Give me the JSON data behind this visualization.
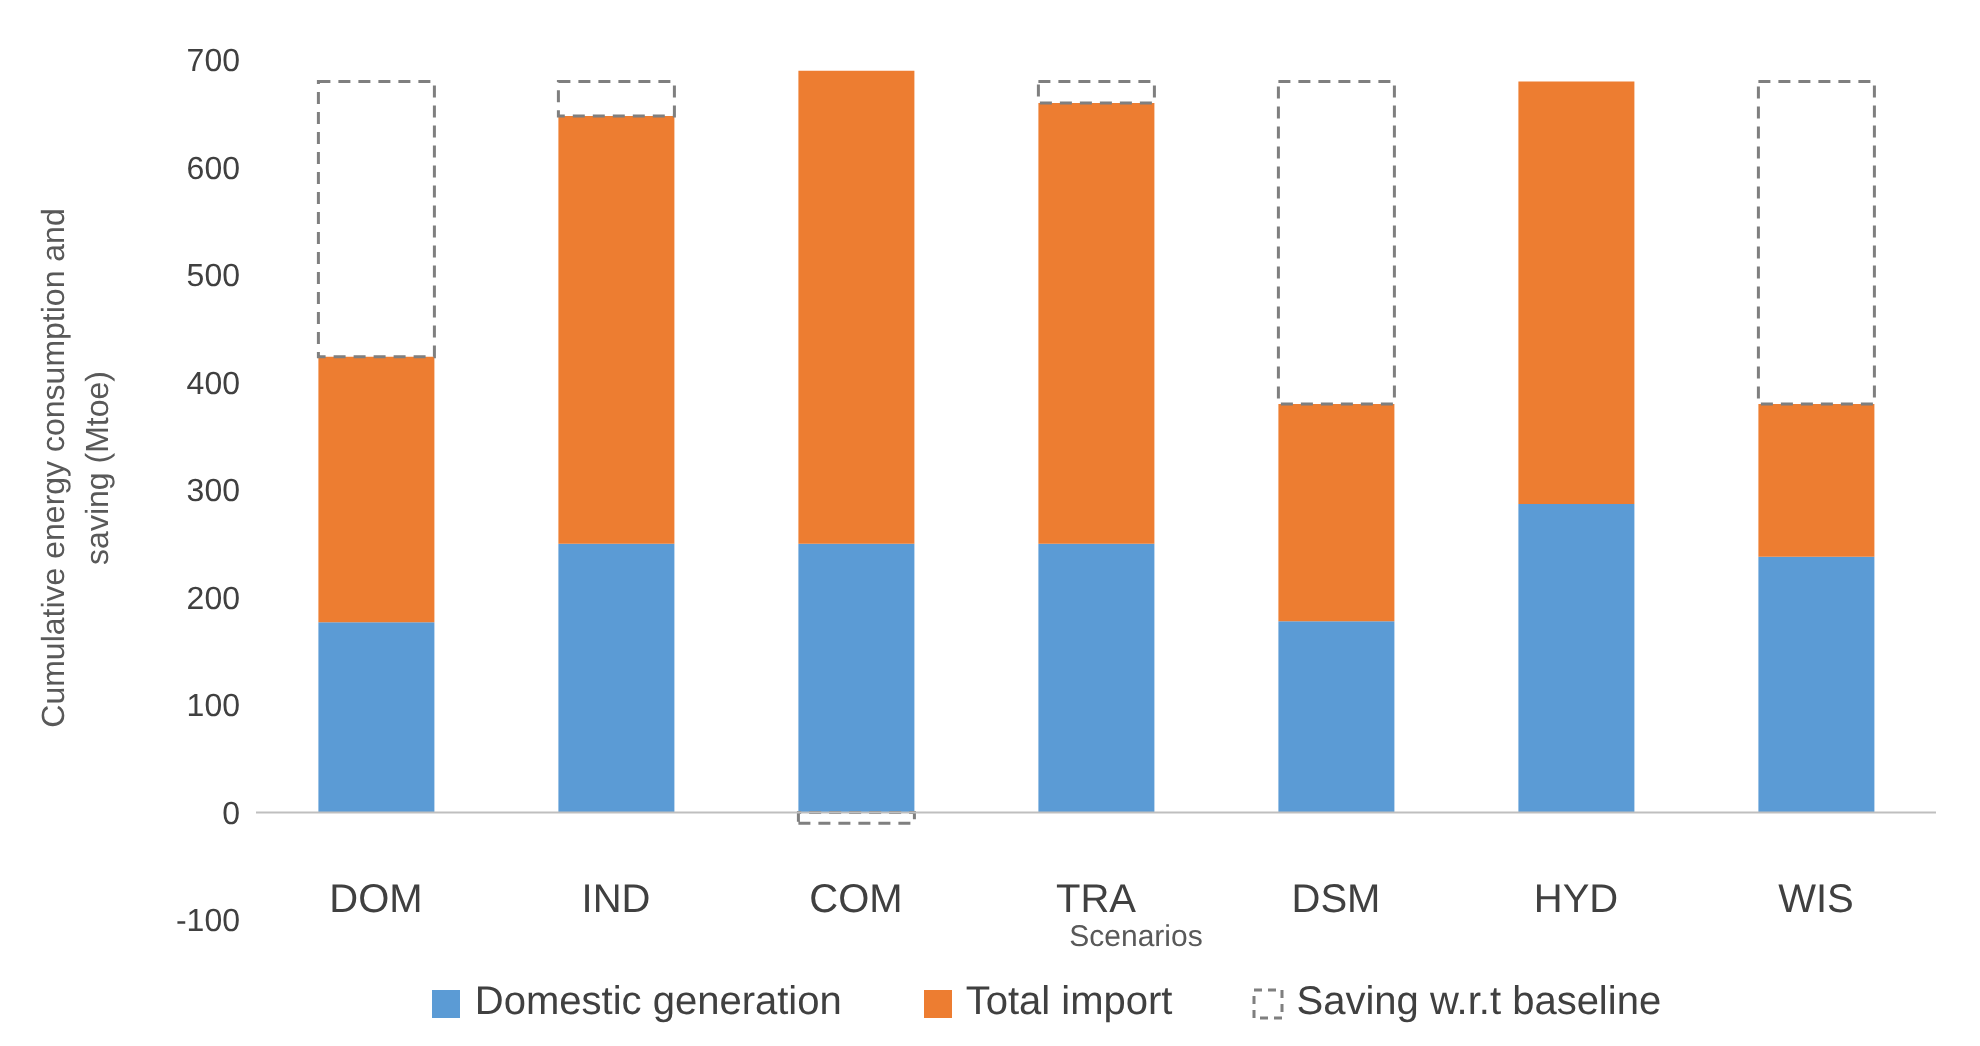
{
  "chart_data": {
    "type": "bar",
    "stacked": true,
    "xlabel": "Scenarios",
    "ylabel": "Cumulative energy consumption and saving (Mtoe)",
    "categories": [
      "DOM",
      "IND",
      "COM",
      "TRA",
      "DSM",
      "HYD",
      "WIS"
    ],
    "series": [
      {
        "name": "Domestic generation",
        "color": "#5b9bd5",
        "values": [
          177,
          250,
          250,
          250,
          178,
          287,
          238
        ]
      },
      {
        "name": "Total import",
        "color": "#ed7d31",
        "values": [
          247,
          398,
          440,
          410,
          202,
          393,
          142
        ]
      },
      {
        "name": "Saving w.r.t baseline",
        "color": "#7f7f7f",
        "line_style": "dashed",
        "values": [
          256,
          32,
          -10,
          20,
          300,
          null,
          300
        ]
      }
    ],
    "ylim": [
      -100,
      700
    ],
    "yticks": [
      -100,
      0,
      100,
      200,
      300,
      400,
      500,
      600,
      700
    ],
    "grid": false,
    "legend": "bottom"
  }
}
